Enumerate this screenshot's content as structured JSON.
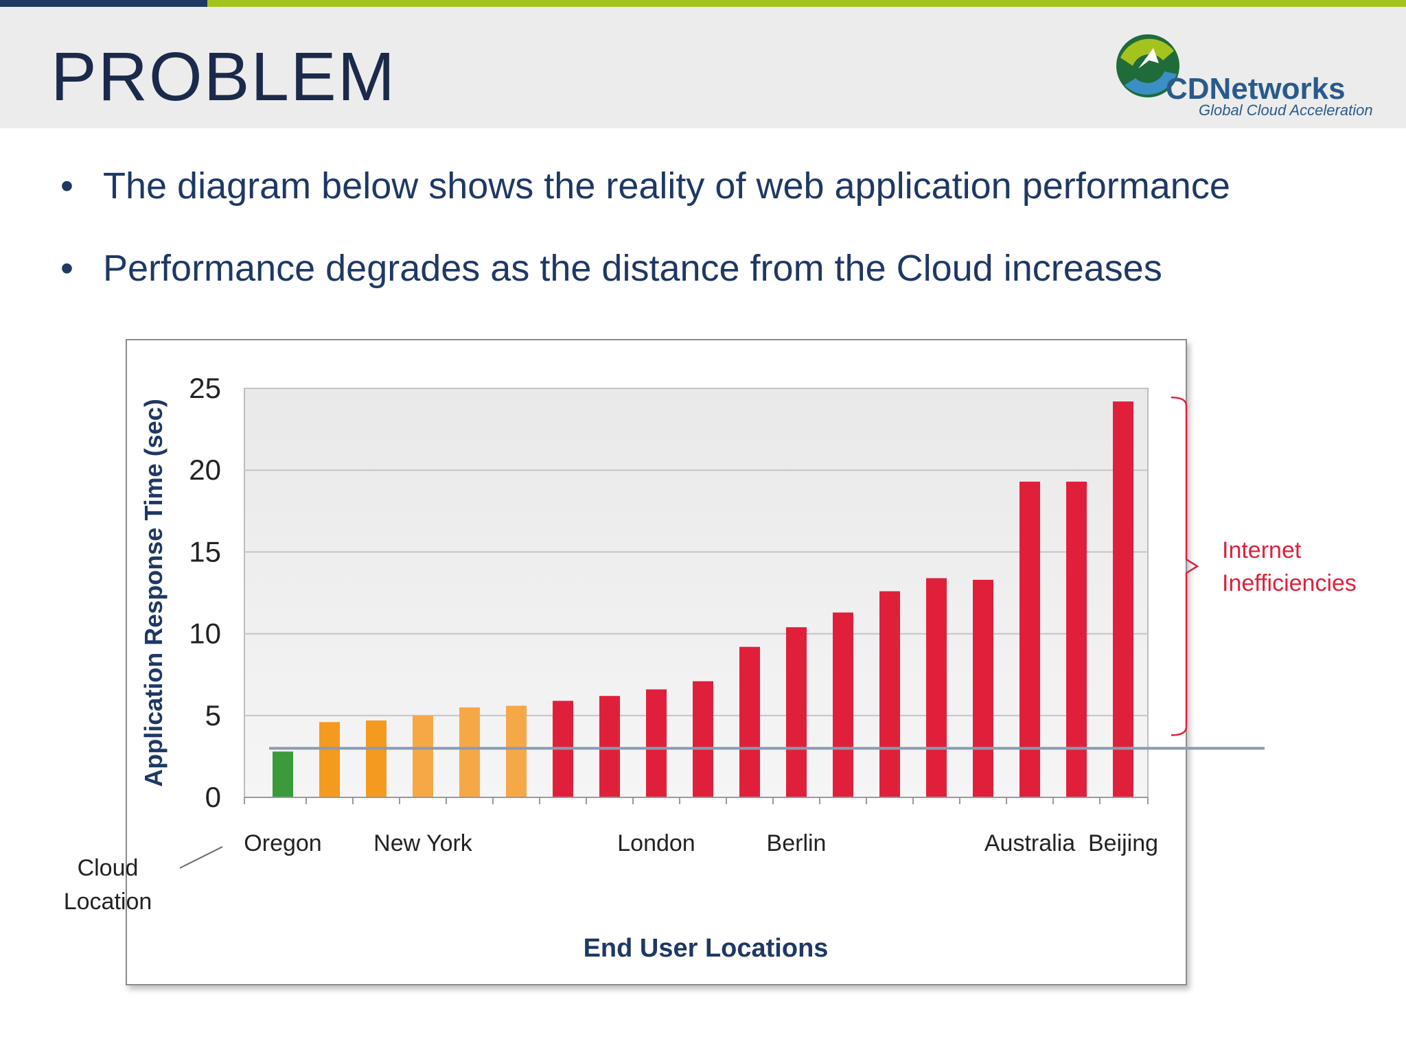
{
  "slide": {
    "title": "PROBLEM",
    "bullets": [
      "The diagram below shows the reality of web application performance",
      "Performance degrades as the distance from the Cloud increases"
    ]
  },
  "logo": {
    "name": "CDNetworks",
    "tagline": "Global Cloud Acceleration"
  },
  "colors": {
    "navy": "#1f3864",
    "lime": "#a5c31e",
    "bar_green": "#3a9a3c",
    "bar_orange": "#f39a1f",
    "bar_light_orange": "#f6a847",
    "bar_red": "#e0203a",
    "annotation_red": "#e0203a",
    "threshold_line": "#8a9bb0"
  },
  "chart_data": {
    "type": "bar",
    "ylabel": "Application Response Time (sec)",
    "xlabel": "End User Locations",
    "ylim": [
      0,
      25
    ],
    "yticks": [
      "0",
      "5",
      "10",
      "15",
      "20",
      "25"
    ],
    "grid": true,
    "values": [
      2.8,
      4.6,
      4.7,
      5.0,
      5.5,
      5.6,
      5.9,
      6.2,
      6.6,
      7.1,
      9.2,
      10.4,
      11.3,
      12.6,
      13.4,
      13.3,
      19.3,
      19.3,
      24.2
    ],
    "bar_color_keys": [
      "bar_green",
      "bar_orange",
      "bar_orange",
      "bar_light_orange",
      "bar_light_orange",
      "bar_light_orange",
      "bar_red",
      "bar_red",
      "bar_red",
      "bar_red",
      "bar_red",
      "bar_red",
      "bar_red",
      "bar_red",
      "bar_red",
      "bar_red",
      "bar_red",
      "bar_red",
      "bar_red"
    ],
    "category_labels": [
      {
        "index": 0,
        "text": "Oregon"
      },
      {
        "index": 3,
        "text": "New York"
      },
      {
        "index": 8,
        "text": "London"
      },
      {
        "index": 11,
        "text": "Berlin"
      },
      {
        "index": 16,
        "text": "Australia"
      },
      {
        "index": 18,
        "text": "Beijing"
      }
    ],
    "threshold_value": 3.0,
    "bracket_range": [
      3.8,
      24.2
    ],
    "annotations": {
      "bracket_label": [
        "Internet",
        "Inefficiencies"
      ],
      "cloud_label": [
        "Cloud",
        "Location"
      ]
    }
  }
}
